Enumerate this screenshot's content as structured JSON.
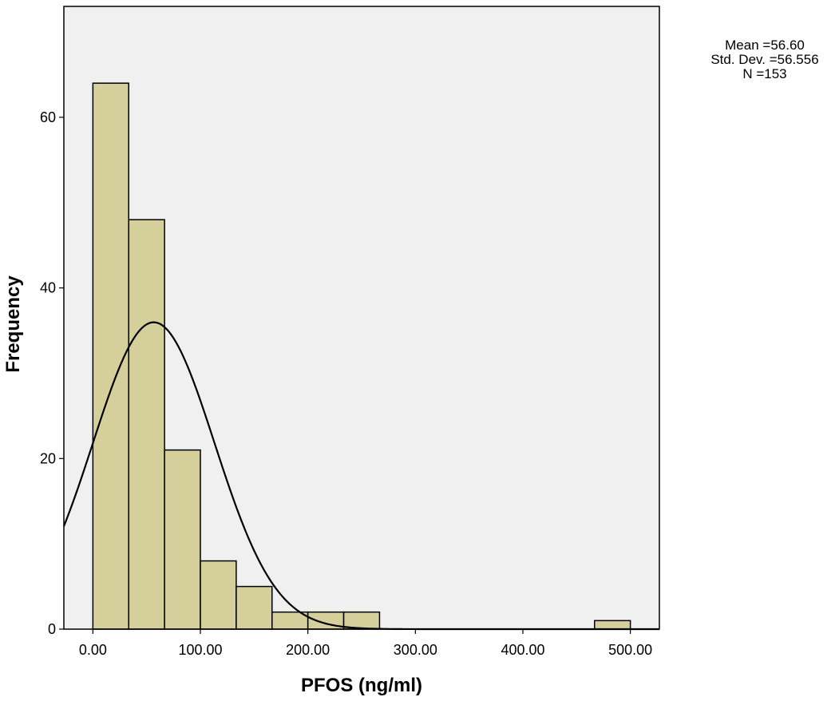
{
  "chart_data": {
    "type": "bar",
    "subtype": "histogram",
    "xlabel": "PFOS (ng/ml)",
    "ylabel": "Frequency",
    "xlim": [
      -27,
      527
    ],
    "ylim": [
      0,
      73
    ],
    "x_ticks": [
      0,
      100,
      200,
      300,
      400,
      500
    ],
    "x_tick_labels": [
      "0.00",
      "100.00",
      "200.00",
      "300.00",
      "400.00",
      "500.00"
    ],
    "y_ticks": [
      0,
      20,
      40,
      60
    ],
    "y_tick_labels": [
      "0",
      "20",
      "40",
      "60"
    ],
    "bin_width": 33.33,
    "bins": [
      {
        "x0": 0,
        "x1": 33.33,
        "count": 64
      },
      {
        "x0": 33.33,
        "x1": 66.67,
        "count": 48
      },
      {
        "x0": 66.67,
        "x1": 100,
        "count": 21
      },
      {
        "x0": 100,
        "x1": 133.33,
        "count": 8
      },
      {
        "x0": 133.33,
        "x1": 166.67,
        "count": 5
      },
      {
        "x0": 166.67,
        "x1": 200,
        "count": 2
      },
      {
        "x0": 200,
        "x1": 233.33,
        "count": 2
      },
      {
        "x0": 233.33,
        "x1": 266.67,
        "count": 2
      },
      {
        "x0": 466.67,
        "x1": 500,
        "count": 1
      }
    ],
    "normal_curve": {
      "mean": 56.6,
      "sd": 56.556,
      "n": 153
    },
    "stats_lines": [
      "Mean =56.60",
      "Std. Dev. =56.556",
      "N =153"
    ],
    "grid": false,
    "legend": "none",
    "colors": {
      "plot_background": "#f0f0f0",
      "bar_fill": "#d4cf9b",
      "bar_stroke": "#000000",
      "curve": "#000000"
    }
  }
}
